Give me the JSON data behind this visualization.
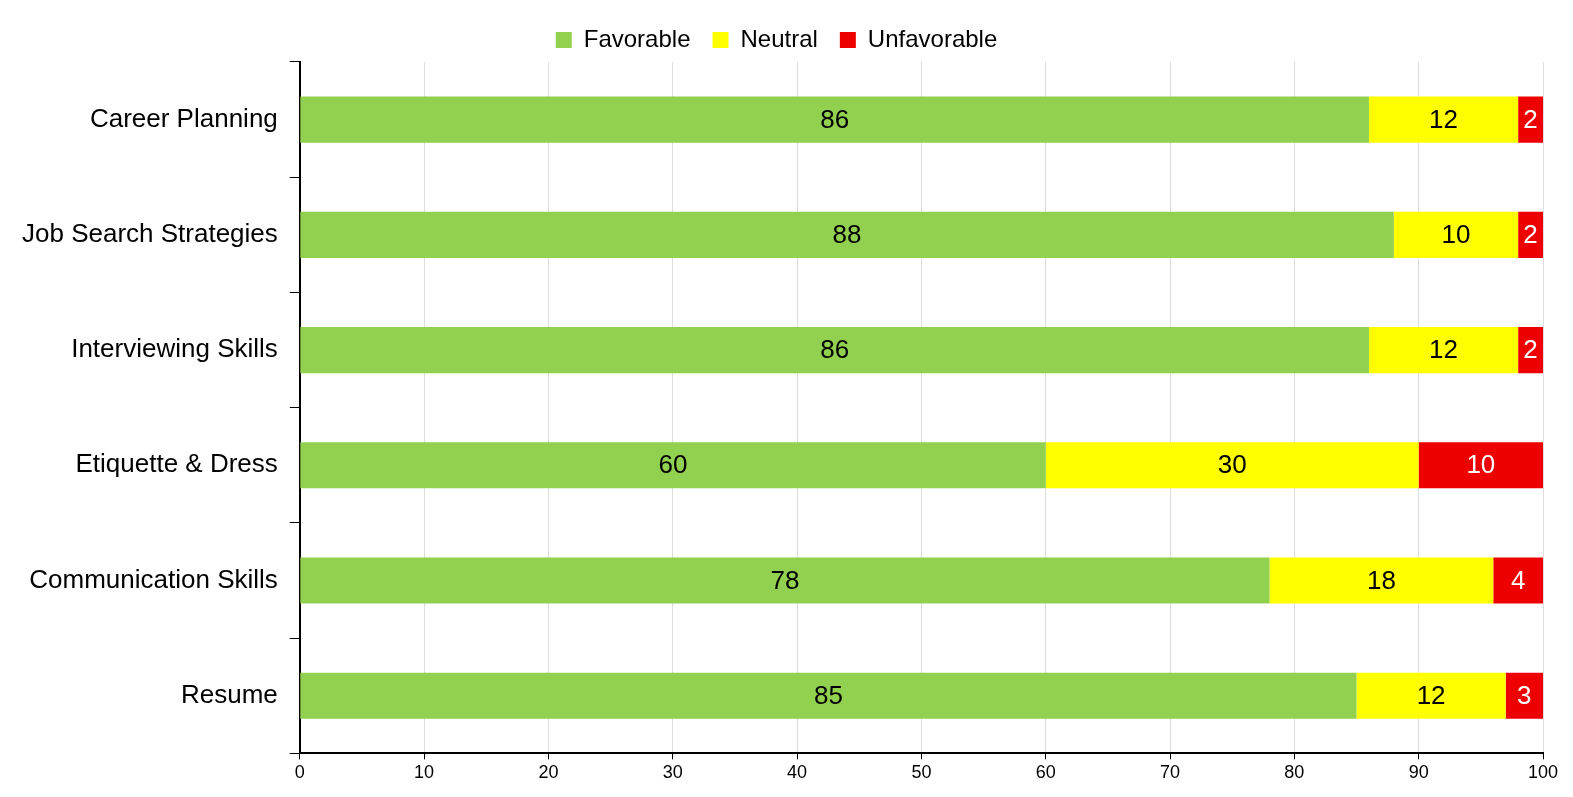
{
  "chart_data": {
    "type": "bar",
    "orientation": "horizontal",
    "stacked": true,
    "data_labels": true,
    "grid": "x",
    "legend": "top",
    "categories": [
      "Career Planning",
      "Job Search Strategies",
      "Interviewing Skills",
      "Etiquette & Dress",
      "Communication Skills",
      "Resume"
    ],
    "series": [
      {
        "name": "Favorable",
        "color": "#92d050",
        "values": [
          86,
          88,
          86,
          60,
          78,
          85
        ]
      },
      {
        "name": "Neutral",
        "color": "#ffff00",
        "values": [
          12,
          10,
          12,
          30,
          18,
          12
        ]
      },
      {
        "name": "Unfavorable",
        "color": "#ee0000",
        "values": [
          2,
          2,
          2,
          10,
          4,
          3
        ]
      }
    ],
    "xlim": [
      0,
      100
    ],
    "xticks": [
      0,
      10,
      20,
      30,
      40,
      50,
      60,
      70,
      80,
      90,
      100
    ]
  }
}
